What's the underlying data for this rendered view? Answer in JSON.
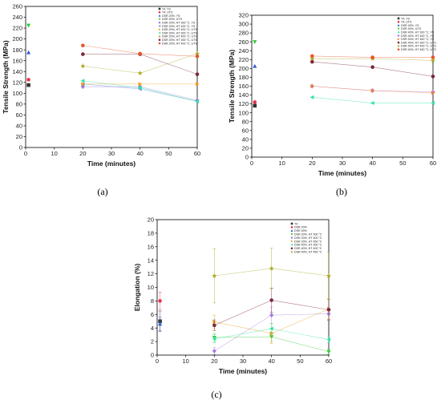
{
  "figure": {
    "panels": [
      {
        "label": "(a)",
        "chart_data": {
          "type": "scatter",
          "title": "",
          "xlabel": "Time (minutes)",
          "ylabel": "Tensile Strength (MPa)",
          "xlim": [
            0,
            60
          ],
          "ylim": [
            0,
            260
          ],
          "xticks": [
            0,
            10,
            20,
            30,
            40,
            50,
            60
          ],
          "yticks": [
            0,
            20,
            40,
            60,
            80,
            100,
            120,
            140,
            160,
            180,
            200,
            220,
            240,
            260
          ],
          "legend_position": "top-right",
          "series": [
            {
              "name": "T4, YS",
              "color": "#333333",
              "marker": "square",
              "x": [
                1
              ],
              "y": [
                115
              ]
            },
            {
              "name": "T4, UTS",
              "color": "#e8334a",
              "marker": "circle",
              "x": [
                1
              ],
              "y": [
                125
              ]
            },
            {
              "name": "DSR 20%, YS",
              "color": "#2a5bd7",
              "marker": "triangle-up",
              "x": [
                1
              ],
              "y": [
                175
              ]
            },
            {
              "name": "DSR 20%, UTS",
              "color": "#33cc33",
              "marker": "triangle-down",
              "x": [
                1
              ],
              "y": [
                225
              ]
            },
            {
              "name": "DSR 20%, HT 300 °C, YS",
              "color": "#9b7be0",
              "marker": "diamond",
              "x": [
                20,
                40,
                60
              ],
              "y": [
                112,
                112,
                87
              ],
              "line": true
            },
            {
              "name": "DSR 20%, HT 400 °C, YS",
              "color": "#5b87e0",
              "marker": "triangle-left",
              "x": [
                20,
                40,
                60
              ],
              "y": [
                117,
                108,
                85
              ],
              "line": true
            },
            {
              "name": "DSR 20%, HT 400 °C, UTS",
              "color": "#f0a020",
              "marker": "triangle-right",
              "x": [
                20,
                40,
                60
              ],
              "y": [
                117,
                117,
                117
              ],
              "line": true
            },
            {
              "name": "DSR 20%, HT 300 °C, UTS",
              "color": "#2ee6a0",
              "marker": "triangle-left",
              "x": [
                20,
                40,
                60
              ],
              "y": [
                123,
                110,
                85
              ],
              "line": true
            },
            {
              "name": "DSR 20%, HT 400 °C, UTS",
              "color": "#aaaa22",
              "marker": "star",
              "x": [
                20,
                40,
                60
              ],
              "y": [
                150,
                137,
                173
              ],
              "line": true
            },
            {
              "name": "DSR 20%, HT 300 °C, UTS",
              "color": "#7a2a3a",
              "marker": "circle",
              "x": [
                20,
                40,
                60
              ],
              "y": [
                172,
                172,
                135
              ],
              "line": true
            },
            {
              "name": "DSR 20%, HT 400 °C, UTS",
              "color": "#e8542a",
              "marker": "circle",
              "x": [
                20,
                40,
                60
              ],
              "y": [
                188,
                173,
                168
              ],
              "line": true
            }
          ]
        }
      },
      {
        "label": "(b)",
        "chart_data": {
          "type": "scatter",
          "title": "",
          "xlabel": "Time (minutes)",
          "ylabel": "Tensile Strength (MPa)",
          "xlim": [
            0,
            60
          ],
          "ylim": [
            0,
            320
          ],
          "xticks": [
            0,
            10,
            20,
            30,
            40,
            50,
            60
          ],
          "yticks": [
            0,
            20,
            40,
            60,
            80,
            100,
            120,
            140,
            160,
            180,
            200,
            220,
            240,
            260,
            280,
            300,
            320
          ],
          "legend_position": "top-right",
          "series": [
            {
              "name": "T4, YS",
              "color": "#333333",
              "marker": "square",
              "x": [
                1
              ],
              "y": [
                116
              ]
            },
            {
              "name": "T4, UTS",
              "color": "#e8334a",
              "marker": "circle",
              "x": [
                1
              ],
              "y": [
                124
              ]
            },
            {
              "name": "DSR 40%, YS",
              "color": "#2a5bd7",
              "marker": "triangle-up",
              "x": [
                1
              ],
              "y": [
                205
              ]
            },
            {
              "name": "DSR 40%, UTS",
              "color": "#33cc33",
              "marker": "triangle-down",
              "x": [
                1
              ],
              "y": [
                260
              ]
            },
            {
              "name": "DSR 40%, HT 300 °C, YS",
              "color": "#2ee6a0",
              "marker": "triangle-left",
              "x": [
                20,
                40,
                60
              ],
              "y": [
                135,
                122,
                122
              ],
              "line": true
            },
            {
              "name": "DSR 40%, HT 400 °C, YS",
              "color": "#b77be0",
              "marker": "diamond",
              "x": [
                20,
                40,
                60
              ],
              "y": [
                160,
                150,
                147
              ],
              "line": true
            },
            {
              "name": "DSR 40%, HT 450 °C, YS",
              "color": "#e8833a",
              "marker": "triangle-right",
              "x": [
                20,
                40,
                60
              ],
              "y": [
                160,
                150,
                145
              ],
              "line": true
            },
            {
              "name": "DSR 40%, HT 300 °C, UTS",
              "color": "#7a2a3a",
              "marker": "circle",
              "x": [
                20,
                40,
                60
              ],
              "y": [
                215,
                203,
                182
              ],
              "line": true
            },
            {
              "name": "DSR 40%, HT 400 °C, UTS",
              "color": "#aaaa22",
              "marker": "star",
              "x": [
                20,
                40,
                60
              ],
              "y": [
                222,
                222,
                218
              ],
              "line": true
            },
            {
              "name": "DSR 40%, HT 450 °C, UTS",
              "color": "#e8542a",
              "marker": "circle",
              "x": [
                20,
                40,
                60
              ],
              "y": [
                228,
                225,
                225
              ],
              "line": true
            }
          ]
        }
      },
      {
        "label": "(c)",
        "chart_data": {
          "type": "scatter",
          "title": "",
          "xlabel": "Time (minutes)",
          "ylabel": "Elongation (%)",
          "xlim": [
            0,
            60
          ],
          "ylim": [
            0,
            20
          ],
          "xticks": [
            0,
            10,
            20,
            30,
            40,
            50,
            60
          ],
          "yticks": [
            0,
            2,
            4,
            6,
            8,
            10,
            12,
            14,
            16,
            18,
            20
          ],
          "legend_position": "top-right",
          "series": [
            {
              "name": "T4",
              "color": "#333333",
              "marker": "square",
              "x": [
                1
              ],
              "y": [
                5.0
              ],
              "err": [
                1.5
              ]
            },
            {
              "name": "DSR 20%",
              "color": "#e8334a",
              "marker": "circle",
              "x": [
                1
              ],
              "y": [
                8.0
              ],
              "err": [
                1.3
              ]
            },
            {
              "name": "DSR 40%",
              "color": "#2a5bd7",
              "marker": "triangle-up",
              "x": [
                1
              ],
              "y": [
                4.6
              ],
              "err": [
                1.0
              ]
            },
            {
              "name": "DSR 20%, HT 300 °C",
              "color": "#33cc33",
              "marker": "triangle-down",
              "x": [
                20,
                40,
                60
              ],
              "y": [
                2.6,
                2.7,
                0.5
              ],
              "err": [
                0.6,
                0.7,
                0.4
              ],
              "line": true
            },
            {
              "name": "DSR 20%, HT 400 °C",
              "color": "#a67be0",
              "marker": "diamond",
              "x": [
                20,
                40,
                60
              ],
              "y": [
                0.6,
                5.9,
                6.1
              ],
              "err": [
                0.5,
                1.2,
                1.0
              ],
              "line": true
            },
            {
              "name": "DSR 20%, HT 450 °C",
              "color": "#e8a020",
              "marker": "triangle-right",
              "x": [
                20,
                40,
                60
              ],
              "y": [
                4.9,
                3.2,
                6.8
              ],
              "err": [
                1.0,
                1.5,
                1.5
              ],
              "line": true
            },
            {
              "name": "DSR 40%, HT 300 °C",
              "color": "#2ee6a0",
              "marker": "triangle-left",
              "x": [
                20,
                40,
                60
              ],
              "y": [
                2.4,
                3.9,
                2.3
              ],
              "err": [
                0.6,
                0.8,
                0.5
              ],
              "line": true
            },
            {
              "name": "DSR 40%, HT 400 °C",
              "color": "#7a2a3a",
              "marker": "circle",
              "x": [
                20,
                40,
                60
              ],
              "y": [
                4.4,
                8.1,
                6.7
              ],
              "err": [
                0.8,
                1.8,
                1.5
              ],
              "line": true
            },
            {
              "name": "DSR 40%, HT 450 °C",
              "color": "#aaaa22",
              "marker": "star",
              "x": [
                20,
                40,
                60
              ],
              "y": [
                11.7,
                12.8,
                11.7
              ],
              "err": [
                4.0,
                3.0,
                3.5
              ],
              "line": true
            }
          ]
        }
      }
    ]
  }
}
